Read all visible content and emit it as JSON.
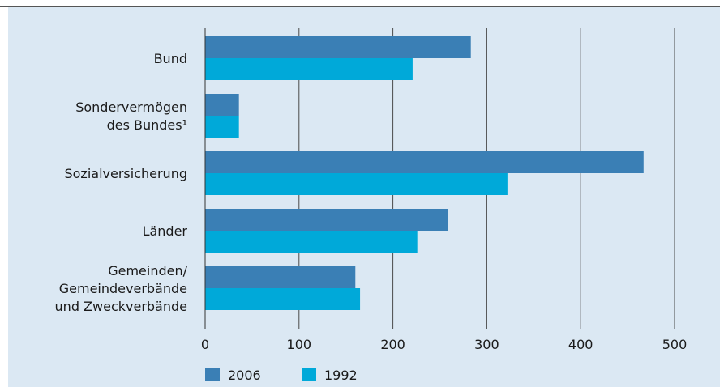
{
  "chart_data": {
    "type": "bar",
    "orientation": "horizontal",
    "categories": [
      [
        "Bund"
      ],
      [
        "Sondervermögen",
        "des Bundes¹"
      ],
      [
        "Sozialversicherung"
      ],
      [
        "Länder"
      ],
      [
        "Gemeinden/",
        "Gemeindeverbände",
        "und Zweckverbände"
      ]
    ],
    "series": [
      {
        "name": "2006",
        "color": "#3a7fb5",
        "values": [
          283,
          36,
          467,
          259,
          160
        ]
      },
      {
        "name": "1992",
        "color": "#00a9d9",
        "values": [
          221,
          36,
          322,
          226,
          165
        ]
      }
    ],
    "xlim": [
      0,
      500
    ],
    "xticks": [
      0,
      100,
      200,
      300,
      400,
      500
    ],
    "grid": true,
    "legend_position": "bottom-left"
  }
}
